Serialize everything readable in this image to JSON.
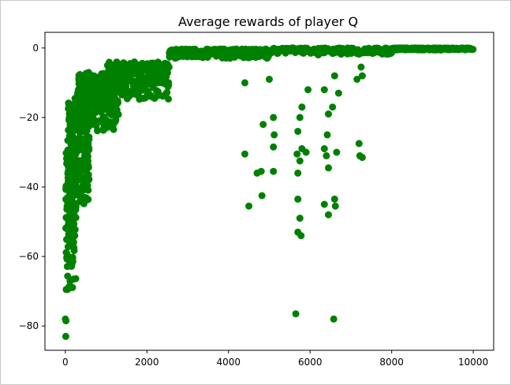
{
  "chart_data": {
    "type": "scatter",
    "title": "Average rewards of player Q",
    "xlabel": "",
    "ylabel": "",
    "xlim": [
      -500,
      10500
    ],
    "ylim": [
      -87,
      4.5
    ],
    "xticks": [
      0,
      2000,
      4000,
      6000,
      8000,
      10000
    ],
    "yticks": [
      0,
      -20,
      -40,
      -60,
      -80
    ],
    "grid": false,
    "marker_color": "#008000",
    "series": [
      {
        "regions": [
          {
            "x_range": [
              10,
              260
            ],
            "y_range": [
              -70,
              -30
            ],
            "count": 170
          },
          {
            "x_range": [
              60,
              600
            ],
            "y_range": [
              -45,
              -14
            ],
            "count": 240
          },
          {
            "x_range": [
              300,
              1300
            ],
            "y_range": [
              -24,
              -7
            ],
            "count": 300
          },
          {
            "x_range": [
              1000,
              2550
            ],
            "y_range": [
              -15,
              -4
            ],
            "count": 260
          },
          {
            "x_range": [
              2550,
              5000
            ],
            "y_range": [
              -3,
              -0.3
            ],
            "count": 260
          },
          {
            "x_range": [
              5000,
              8000
            ],
            "y_range": [
              -1.8,
              0
            ],
            "count": 240
          },
          {
            "x_range": [
              8000,
              10000
            ],
            "y_range": [
              -0.6,
              0
            ],
            "count": 200
          }
        ],
        "points": [
          {
            "x": 10,
            "y": -83
          },
          {
            "x": 0,
            "y": -78
          },
          {
            "x": 15,
            "y": -78.5
          },
          {
            "x": 20,
            "y": -69.5
          },
          {
            "x": 50,
            "y": -69.5
          },
          {
            "x": 4400,
            "y": -30.5
          },
          {
            "x": 4500,
            "y": -45.5
          },
          {
            "x": 4700,
            "y": -36
          },
          {
            "x": 4800,
            "y": -35.5
          },
          {
            "x": 4820,
            "y": -42.5
          },
          {
            "x": 5100,
            "y": -35.5
          },
          {
            "x": 5100,
            "y": -28.5
          },
          {
            "x": 5120,
            "y": -25
          },
          {
            "x": 5000,
            "y": -9
          },
          {
            "x": 5100,
            "y": -20
          },
          {
            "x": 4400,
            "y": -10
          },
          {
            "x": 4850,
            "y": -22
          },
          {
            "x": 5650,
            "y": -76.5
          },
          {
            "x": 5700,
            "y": -43.5
          },
          {
            "x": 5750,
            "y": -49
          },
          {
            "x": 5700,
            "y": -53
          },
          {
            "x": 5780,
            "y": -54
          },
          {
            "x": 5700,
            "y": -36
          },
          {
            "x": 5750,
            "y": -32.5
          },
          {
            "x": 5680,
            "y": -30.5
          },
          {
            "x": 5800,
            "y": -29
          },
          {
            "x": 5900,
            "y": -30
          },
          {
            "x": 5700,
            "y": -24
          },
          {
            "x": 5750,
            "y": -20
          },
          {
            "x": 5800,
            "y": -17
          },
          {
            "x": 5950,
            "y": -12
          },
          {
            "x": 6350,
            "y": -29
          },
          {
            "x": 6400,
            "y": -31
          },
          {
            "x": 6450,
            "y": -34.5
          },
          {
            "x": 6420,
            "y": -25
          },
          {
            "x": 6350,
            "y": -45
          },
          {
            "x": 6450,
            "y": -48
          },
          {
            "x": 6600,
            "y": -43.5
          },
          {
            "x": 6620,
            "y": -45.5
          },
          {
            "x": 6650,
            "y": -30
          },
          {
            "x": 6580,
            "y": -78
          },
          {
            "x": 6550,
            "y": -17
          },
          {
            "x": 6450,
            "y": -19
          },
          {
            "x": 6700,
            "y": -13
          },
          {
            "x": 6350,
            "y": -12
          },
          {
            "x": 6600,
            "y": -8
          },
          {
            "x": 6200,
            "y": -2
          },
          {
            "x": 7200,
            "y": -27.5
          },
          {
            "x": 7220,
            "y": -31
          },
          {
            "x": 7280,
            "y": -31.5
          },
          {
            "x": 7250,
            "y": -5.5
          },
          {
            "x": 7280,
            "y": -8
          },
          {
            "x": 7150,
            "y": -9
          }
        ]
      }
    ]
  }
}
